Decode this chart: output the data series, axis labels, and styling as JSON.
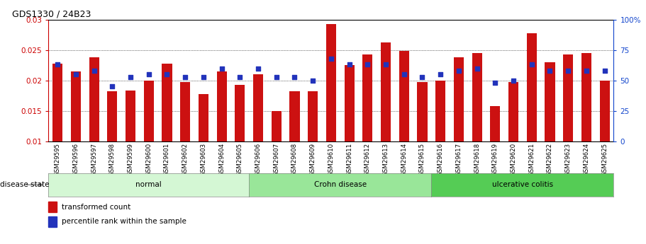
{
  "title": "GDS1330 / 24B23",
  "samples": [
    "GSM29595",
    "GSM29596",
    "GSM29597",
    "GSM29598",
    "GSM29599",
    "GSM29600",
    "GSM29601",
    "GSM29602",
    "GSM29603",
    "GSM29604",
    "GSM29605",
    "GSM29606",
    "GSM29607",
    "GSM29608",
    "GSM29609",
    "GSM29610",
    "GSM29611",
    "GSM29612",
    "GSM29613",
    "GSM29614",
    "GSM29615",
    "GSM29616",
    "GSM29617",
    "GSM29618",
    "GSM29619",
    "GSM29620",
    "GSM29621",
    "GSM29622",
    "GSM29623",
    "GSM29624",
    "GSM29625"
  ],
  "transformed_count": [
    0.0228,
    0.0215,
    0.0238,
    0.0183,
    0.0184,
    0.02,
    0.0228,
    0.0198,
    0.0178,
    0.0215,
    0.0193,
    0.021,
    0.015,
    0.0183,
    0.0183,
    0.0293,
    0.0225,
    0.0243,
    0.0263,
    0.0248,
    0.0198,
    0.02,
    0.0238,
    0.0245,
    0.0158,
    0.0197,
    0.0278,
    0.023,
    0.0243,
    0.0245,
    0.02
  ],
  "percentile_rank": [
    63,
    55,
    58,
    45,
    53,
    55,
    55,
    53,
    53,
    60,
    53,
    60,
    53,
    53,
    50,
    68,
    63,
    63,
    63,
    55,
    53,
    55,
    58,
    60,
    48,
    50,
    63,
    58,
    58,
    58,
    58
  ],
  "disease_groups": [
    {
      "label": "normal",
      "start": 0,
      "end": 11,
      "color": "#d4f7d4"
    },
    {
      "label": "Crohn disease",
      "start": 11,
      "end": 21,
      "color": "#99e699"
    },
    {
      "label": "ulcerative colitis",
      "start": 21,
      "end": 31,
      "color": "#55cc55"
    }
  ],
  "ylim_left": [
    0.01,
    0.03
  ],
  "ylim_right": [
    0,
    100
  ],
  "bar_color": "#cc1111",
  "dot_color": "#2233bb",
  "background_color": "#ffffff",
  "ylabel_left_color": "#cc0000",
  "ylabel_right_color": "#1144cc"
}
